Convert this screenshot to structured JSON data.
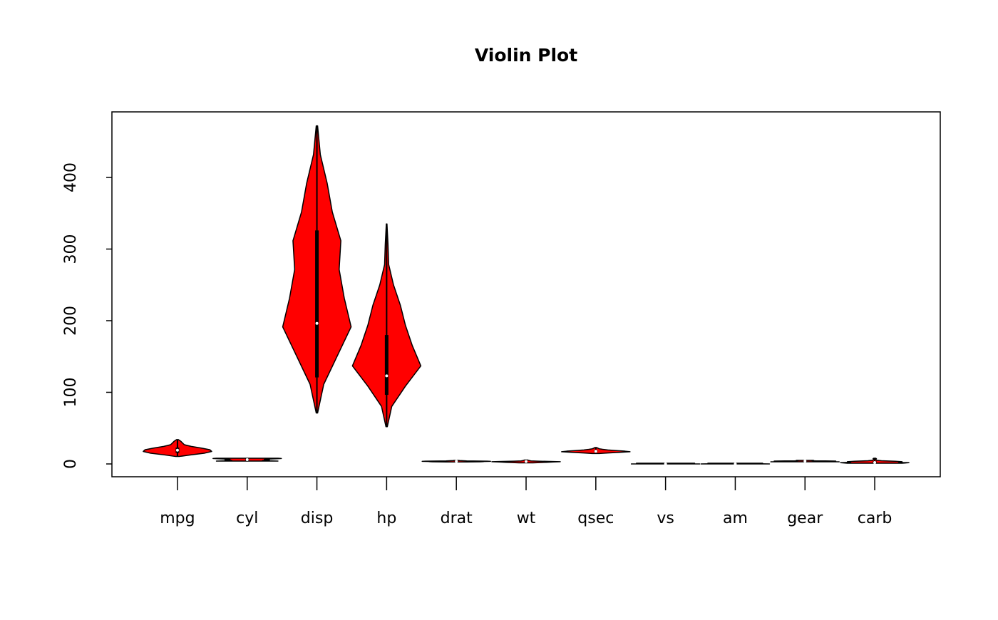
{
  "chart_data": {
    "type": "violin",
    "title": "Violin Plot",
    "color": "#ff0000",
    "categories": [
      "mpg",
      "cyl",
      "disp",
      "hp",
      "drat",
      "wt",
      "qsec",
      "vs",
      "am",
      "gear",
      "carb"
    ],
    "series": [
      {
        "name": "mpg",
        "min": 10.4,
        "q1": 15.425,
        "median": 19.2,
        "q3": 22.8,
        "max": 33.9,
        "density": [
          0.05,
          0.4,
          0.8,
          1.0,
          0.95,
          0.7,
          0.4,
          0.2,
          0.15,
          0.1,
          0.03
        ]
      },
      {
        "name": "cyl",
        "min": 4,
        "q1": 4,
        "median": 6,
        "q3": 8,
        "max": 8,
        "density": [
          0.9,
          0.6,
          0.45,
          0.55,
          0.65,
          0.55,
          0.5,
          0.65,
          0.85,
          1.0,
          0.9
        ]
      },
      {
        "name": "disp",
        "min": 71.1,
        "q1": 120.8,
        "median": 196.3,
        "q3": 326,
        "max": 472,
        "density": [
          0.02,
          0.2,
          0.6,
          1.0,
          0.8,
          0.65,
          0.7,
          0.45,
          0.3,
          0.1,
          0.02
        ]
      },
      {
        "name": "hp",
        "min": 52,
        "q1": 96.5,
        "median": 123,
        "q3": 180,
        "max": 335,
        "density": [
          0.02,
          0.15,
          0.55,
          1.0,
          0.75,
          0.55,
          0.4,
          0.2,
          0.06,
          0.04,
          0.01
        ]
      },
      {
        "name": "drat",
        "min": 2.76,
        "q1": 3.08,
        "median": 3.695,
        "q3": 3.92,
        "max": 4.93,
        "density": [
          0.3,
          0.7,
          0.8,
          0.75,
          1.0,
          0.9,
          0.5,
          0.3,
          0.2,
          0.1,
          0.05
        ]
      },
      {
        "name": "wt",
        "min": 1.513,
        "q1": 2.58,
        "median": 3.325,
        "q3": 3.61,
        "max": 5.424,
        "density": [
          0.2,
          0.4,
          0.6,
          0.8,
          1.0,
          0.7,
          0.35,
          0.15,
          0.1,
          0.08,
          0.05
        ]
      },
      {
        "name": "qsec",
        "min": 14.5,
        "q1": 16.89,
        "median": 17.71,
        "q3": 18.9,
        "max": 22.9,
        "density": [
          0.1,
          0.35,
          0.7,
          1.0,
          0.85,
          0.6,
          0.35,
          0.2,
          0.1,
          0.06,
          0.03
        ]
      },
      {
        "name": "vs",
        "min": 0,
        "q1": 0,
        "median": 0,
        "q3": 1,
        "max": 1,
        "density": [
          1.0,
          0.8,
          0.5,
          0.3,
          0.3,
          0.3,
          0.3,
          0.3,
          0.5,
          0.7,
          0.85
        ]
      },
      {
        "name": "am",
        "min": 0,
        "q1": 0,
        "median": 0,
        "q3": 1,
        "max": 1,
        "density": [
          1.0,
          0.85,
          0.5,
          0.3,
          0.3,
          0.3,
          0.3,
          0.3,
          0.5,
          0.7,
          0.8
        ]
      },
      {
        "name": "gear",
        "min": 3,
        "q1": 3,
        "median": 4,
        "q3": 4,
        "max": 5,
        "density": [
          1.0,
          0.7,
          0.5,
          0.6,
          0.8,
          0.9,
          0.6,
          0.3,
          0.2,
          0.2,
          0.25
        ]
      },
      {
        "name": "carb",
        "min": 1,
        "q1": 2,
        "median": 2,
        "q3": 4,
        "max": 8,
        "density": [
          0.8,
          1.0,
          0.7,
          0.8,
          0.6,
          0.2,
          0.05,
          0.04,
          0.03,
          0.05,
          0.03
        ]
      }
    ],
    "xlim": [
      0.06,
      11.94
    ],
    "ylim": [
      -17.9,
      491.5
    ],
    "yticks": [
      0,
      100,
      200,
      300,
      400
    ]
  }
}
